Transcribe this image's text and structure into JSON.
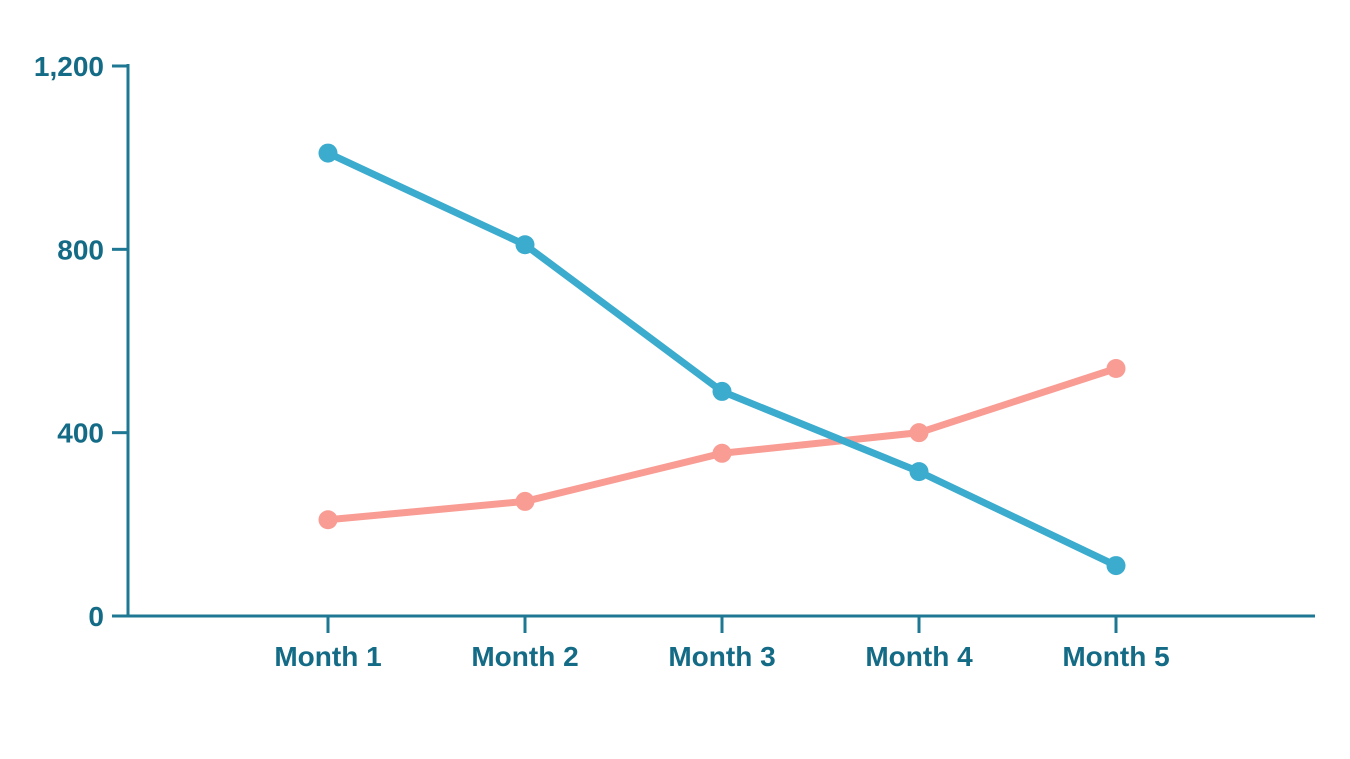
{
  "chart_data": {
    "type": "line",
    "categories": [
      "Month 1",
      "Month 2",
      "Month 3",
      "Month 4",
      "Month 5"
    ],
    "series": [
      {
        "name": "teal-declining-series",
        "color": "#3BABCE",
        "values": [
          1010,
          810,
          490,
          315,
          110
        ]
      },
      {
        "name": "pink-rising-series",
        "color": "#F99C94",
        "values": [
          210,
          250,
          355,
          400,
          540
        ]
      }
    ],
    "title": "",
    "xlabel": "",
    "ylabel": "",
    "ylim": [
      0,
      1200
    ],
    "yticks": [
      0,
      400,
      800,
      1200
    ],
    "ytick_labels": [
      "0",
      "400",
      "800",
      "1,200"
    ],
    "grid": false,
    "legend": "none",
    "marker": "circle",
    "colors": {
      "axis": "#1E7893",
      "tick_label": "#146B86",
      "background": "#FFFFFF"
    }
  }
}
